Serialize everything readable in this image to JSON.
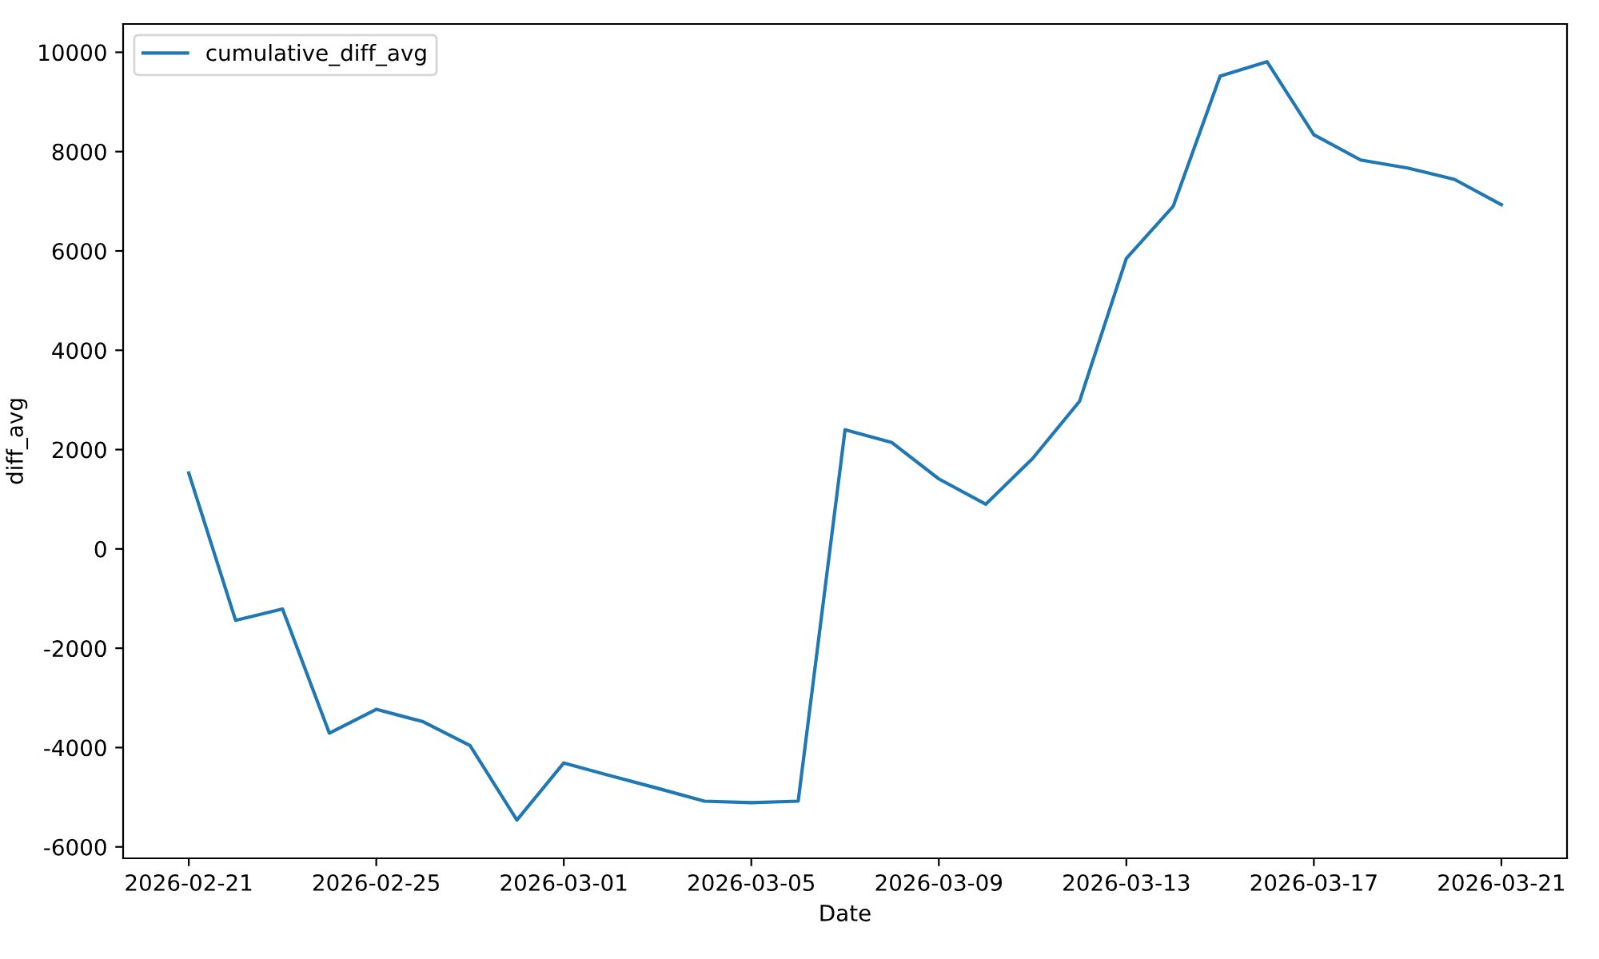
{
  "chart_data": {
    "type": "line",
    "xlabel": "Date",
    "ylabel": "diff_avg",
    "x": [
      "2026-02-21",
      "2026-02-22",
      "2026-02-23",
      "2026-02-24",
      "2026-02-25",
      "2026-02-26",
      "2026-02-27",
      "2026-02-28",
      "2026-03-01",
      "2026-03-02",
      "2026-03-03",
      "2026-03-04",
      "2026-03-05",
      "2026-03-06",
      "2026-03-07",
      "2026-03-08",
      "2026-03-09",
      "2026-03-10",
      "2026-03-11",
      "2026-03-12",
      "2026-03-13",
      "2026-03-14",
      "2026-03-15",
      "2026-03-16",
      "2026-03-17",
      "2026-03-18",
      "2026-03-19",
      "2026-03-20",
      "2026-03-21"
    ],
    "series": [
      {
        "name": "cumulative_diff_avg",
        "color": "#1f77b4",
        "values": [
          1530,
          -1440,
          -1210,
          -3710,
          -3230,
          -3480,
          -3960,
          -5460,
          -4310,
          -4570,
          -4820,
          -5080,
          -5110,
          -5080,
          2400,
          2140,
          1410,
          900,
          1820,
          2970,
          5850,
          6900,
          9520,
          9810,
          8340,
          7830,
          7670,
          7440,
          6930
        ]
      }
    ],
    "xlim": [
      "2026-02-19T14:24",
      "2026-03-22T09:36"
    ],
    "xticks": [
      {
        "value": "2026-02-21",
        "label": "2026-02-21"
      },
      {
        "value": "2026-02-25",
        "label": "2026-02-25"
      },
      {
        "value": "2026-03-01",
        "label": "2026-03-01"
      },
      {
        "value": "2026-03-05",
        "label": "2026-03-05"
      },
      {
        "value": "2026-03-09",
        "label": "2026-03-09"
      },
      {
        "value": "2026-03-13",
        "label": "2026-03-13"
      },
      {
        "value": "2026-03-17",
        "label": "2026-03-17"
      },
      {
        "value": "2026-03-21",
        "label": "2026-03-21"
      }
    ],
    "ylim": [
      -6230,
      10570
    ],
    "yticks": [
      -6000,
      -4000,
      -2000,
      0,
      2000,
      4000,
      6000,
      8000,
      10000
    ],
    "legend": "top left",
    "grid": false,
    "line_style": "solid",
    "marker": "none"
  }
}
